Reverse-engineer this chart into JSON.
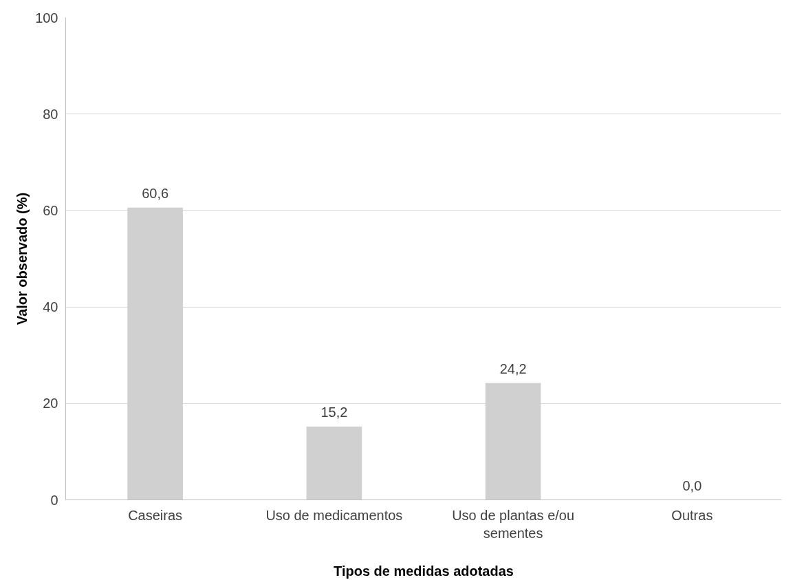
{
  "chart_data": {
    "type": "bar",
    "xlabel": "Tipos de medidas adotadas",
    "ylabel": "Valor observado (%)",
    "categories": [
      "Caseiras",
      "Uso de medicamentos",
      "Uso de plantas e/ou sementes",
      "Outras"
    ],
    "values": [
      60.6,
      15.2,
      24.2,
      0.0
    ],
    "value_labels": [
      "60,6",
      "15,2",
      "24,2",
      "0,0"
    ],
    "color": "#d0d0d0",
    "ylim": [
      0,
      100
    ],
    "yticks": [
      0,
      20,
      40,
      60,
      80,
      100
    ],
    "grid": "y"
  }
}
